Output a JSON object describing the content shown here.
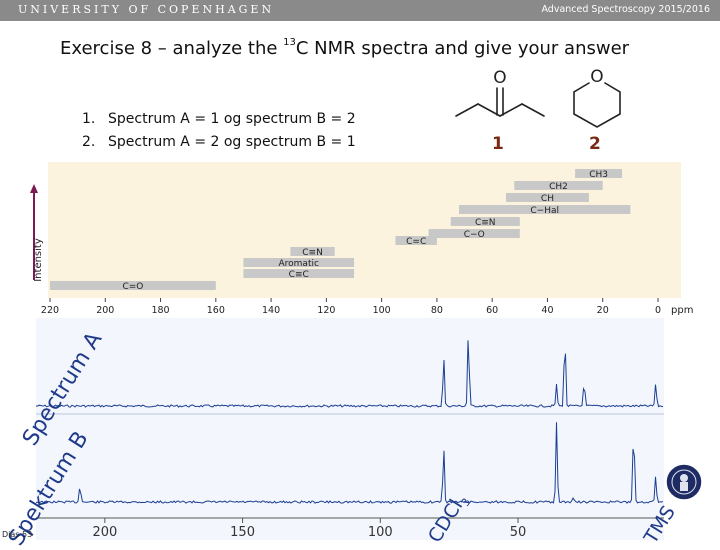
{
  "header": {
    "university": "UNIVERSITY OF COPENHAGEN",
    "course": "Advanced Spectroscopy 2015/2016"
  },
  "title": {
    "prefix": "Exercise 8 – analyze the ",
    "superscript": "13",
    "suffix": "C NMR spectra and give your answer"
  },
  "options": [
    {
      "num": "1.",
      "text": "Spectrum A = 1 og spectrum B = 2"
    },
    {
      "num": "2.",
      "text": "Spectrum A = 2 og spectrum B = 1"
    }
  ],
  "molecules": [
    {
      "label": "1",
      "atom": "O"
    },
    {
      "label": "2",
      "atom": "O"
    }
  ],
  "shift_table": {
    "ylabel": "Intensity",
    "unit": "ppm",
    "ticks": [
      "220",
      "200",
      "180",
      "160",
      "140",
      "120",
      "100",
      "80",
      "60",
      "40",
      "20",
      "0"
    ],
    "bars": [
      {
        "label": "CH3",
        "from": 30,
        "to": 13
      },
      {
        "label": "CH2",
        "from": 52,
        "to": 20
      },
      {
        "label": "CH",
        "from": 55,
        "to": 25
      },
      {
        "label": "C−Hal",
        "from": 72,
        "to": 10
      },
      {
        "label": "C≡N",
        "from": 75,
        "to": 50
      },
      {
        "label": "C−O",
        "from": 83,
        "to": 50
      },
      {
        "label": "C=C",
        "from": 95,
        "to": 80
      },
      {
        "label": "C≡N",
        "from": 133,
        "to": 117
      },
      {
        "label": "Aromatic",
        "from": 150,
        "to": 110
      },
      {
        "label": "C≡C",
        "from": 150,
        "to": 110
      },
      {
        "label": "C=O",
        "from": 220,
        "to": 160
      }
    ],
    "colors": {
      "background": "#fbf3de",
      "bar": "#c8c8c8",
      "arrow": "#7a1b55"
    }
  },
  "spectra": {
    "label_a": "Spectrum A",
    "label_b": "Spektrum B",
    "cdcl3_label": "CDCl",
    "cdcl3_sub": "3",
    "tms_label": "TMS",
    "axis_ticks": [
      "200",
      "150",
      "100",
      "50"
    ],
    "ppm_range": [
      225,
      -3
    ],
    "spectrum_a_peaks": [
      {
        "ppm": 77,
        "height": 0.6
      },
      {
        "ppm": 68,
        "height": 0.92
      },
      {
        "ppm": 36,
        "height": 0.25
      },
      {
        "ppm": 33,
        "height": 0.88
      },
      {
        "ppm": 26,
        "height": 0.3
      },
      {
        "ppm": 0,
        "height": 0.27
      }
    ],
    "spectrum_b_peaks": [
      {
        "ppm": 209,
        "height": 0.2
      },
      {
        "ppm": 77,
        "height": 0.62
      },
      {
        "ppm": 36,
        "height": 0.88
      },
      {
        "ppm": 30,
        "height": 0.05
      },
      {
        "ppm": 8,
        "height": 0.87
      },
      {
        "ppm": 0,
        "height": 0.3
      }
    ],
    "colors": {
      "trace": "#1b3f93",
      "background": "#f3f6fc"
    }
  },
  "footer": {
    "slide": "Dias 53"
  }
}
